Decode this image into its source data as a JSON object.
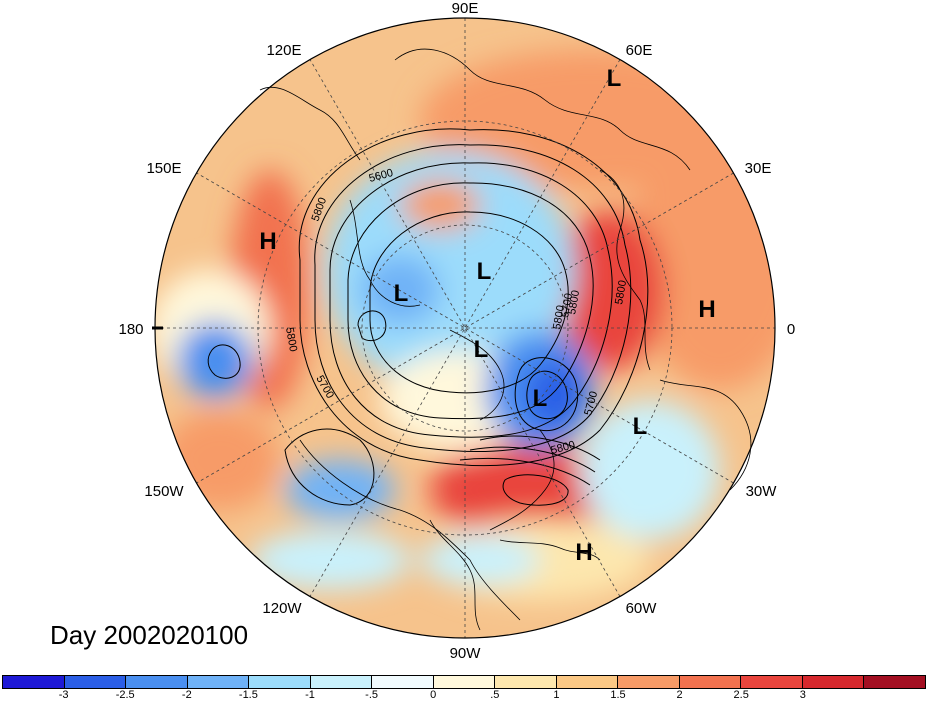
{
  "map": {
    "meridian_labels": [
      {
        "text": "90E",
        "lon": 90
      },
      {
        "text": "60E",
        "lon": 60
      },
      {
        "text": "30E",
        "lon": 30
      },
      {
        "text": "0",
        "lon": 0
      },
      {
        "text": "30W",
        "lon": -30
      },
      {
        "text": "60W",
        "lon": -60
      },
      {
        "text": "90W",
        "lon": -90
      },
      {
        "text": "120W",
        "lon": -120
      },
      {
        "text": "150W",
        "lon": -150
      },
      {
        "text": "180",
        "lon": 180
      },
      {
        "text": "150E",
        "lon": 150
      },
      {
        "text": "120E",
        "lon": 120
      }
    ],
    "pressure_centers": [
      {
        "type": "H",
        "name": "high-center-pacific"
      },
      {
        "type": "H",
        "name": "high-center-europe"
      },
      {
        "type": "H",
        "name": "high-center-caribbean"
      },
      {
        "type": "L",
        "name": "low-center-siberia-north"
      },
      {
        "type": "L",
        "name": "low-center-arctic-1"
      },
      {
        "type": "L",
        "name": "low-center-arctic-2"
      },
      {
        "type": "L",
        "name": "low-center-arctic-3"
      },
      {
        "type": "L",
        "name": "low-center-labrador"
      },
      {
        "type": "L",
        "name": "low-center-atlantic"
      }
    ],
    "contour_labels": [
      "5800",
      "5800",
      "5800",
      "5800",
      "5700",
      "5700",
      "5700",
      "5800",
      "5800",
      "5600"
    ]
  },
  "date_label": "Day 2002020100",
  "colorbar": {
    "colors": [
      "#1e19d6",
      "#2b5ee6",
      "#4a8ff0",
      "#6fb2f7",
      "#9cdcfb",
      "#c9f1fc",
      "#f1fbfe",
      "#fff8dc",
      "#fde7ae",
      "#fbc885",
      "#f79b67",
      "#f2724f",
      "#e9453d",
      "#d6282d",
      "#a30f22"
    ],
    "ticks": [
      "-3",
      "-2.5",
      "-2",
      "-1.5",
      "-1",
      "-.5",
      "0",
      ".5",
      "1",
      "1.5",
      "2",
      "2.5",
      "3"
    ]
  }
}
